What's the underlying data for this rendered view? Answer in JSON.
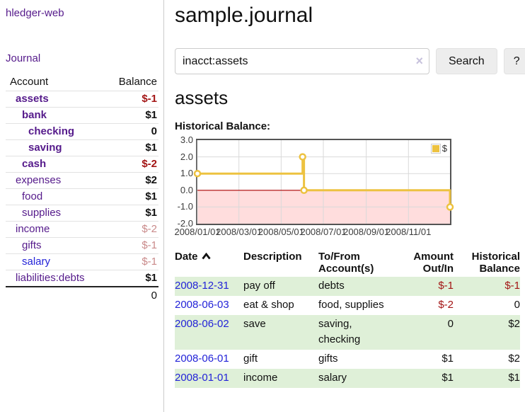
{
  "app": {
    "brand": "hledger-web",
    "nav": {
      "journal": "Journal"
    }
  },
  "sidebar": {
    "col_account": "Account",
    "col_balance": "Balance",
    "accounts": [
      {
        "name": "assets",
        "balance": "$-1",
        "depth": 0,
        "emph": true,
        "balance_style": "negstrong"
      },
      {
        "name": "bank",
        "balance": "$1",
        "depth": 1,
        "emph": true,
        "balance_style": "pos"
      },
      {
        "name": "checking",
        "balance": "0",
        "depth": 2,
        "emph": true,
        "balance_style": "pos"
      },
      {
        "name": "saving",
        "balance": "$1",
        "depth": 2,
        "emph": true,
        "balance_style": "pos"
      },
      {
        "name": "cash",
        "balance": "$-2",
        "depth": 1,
        "emph": true,
        "balance_style": "negstrong"
      },
      {
        "name": "expenses",
        "balance": "$2",
        "depth": 0,
        "emph": false,
        "balance_style": "pos"
      },
      {
        "name": "food",
        "balance": "$1",
        "depth": 1,
        "emph": false,
        "balance_style": "pos"
      },
      {
        "name": "supplies",
        "balance": "$1",
        "depth": 1,
        "emph": false,
        "balance_style": "pos"
      },
      {
        "name": "income",
        "balance": "$-2",
        "depth": 0,
        "emph": false,
        "balance_style": "negmuted"
      },
      {
        "name": "gifts",
        "balance": "$-1",
        "depth": 1,
        "emph": false,
        "balance_style": "negmuted"
      },
      {
        "name": "salary",
        "balance": "$-1",
        "depth": 1,
        "emph": false,
        "balance_style": "negmuted",
        "link_style": "blue"
      },
      {
        "name": "liabilities:debts",
        "balance": "$1",
        "depth": 0,
        "emph": false,
        "balance_style": "pos"
      }
    ],
    "total": "0"
  },
  "header": {
    "title": "sample.journal"
  },
  "search": {
    "value": "inacct:assets",
    "clear_icon": "×",
    "button_label": "Search",
    "help_label": "?"
  },
  "account_page": {
    "title": "assets",
    "chart_label": "Historical Balance:"
  },
  "chart_data": {
    "type": "line",
    "step": true,
    "title": "Historical Balance:",
    "x_range": [
      "2008-01-01",
      "2008-12-31"
    ],
    "ylim": [
      -2,
      3
    ],
    "yticks": [
      "3.0",
      "2.0",
      "1.0",
      "0.0",
      "-1.0",
      "-2.0"
    ],
    "xticks": [
      "2008/01/01",
      "2008/03/01",
      "2008/05/01",
      "2008/07/01",
      "2008/09/01",
      "2008/11/01"
    ],
    "series": [
      {
        "name": "$",
        "color": "#edc240",
        "points": [
          [
            "2008-01-01",
            1.0
          ],
          [
            "2008-06-01",
            2.0
          ],
          [
            "2008-06-03",
            0.0
          ],
          [
            "2008-12-31",
            -1.0
          ]
        ]
      }
    ],
    "legend": {
      "position": "top-right",
      "label": "$"
    },
    "grid": true,
    "below_zero_fill": "#ffdddd",
    "zero_line_color": "#aa0000"
  },
  "register": {
    "headers": {
      "date": "Date",
      "description": "Description",
      "accounts": "To/From Account(s)",
      "amount": "Amount Out/In",
      "balance": "Historical Balance"
    },
    "rows": [
      {
        "date": "2008-12-31",
        "description": "pay off",
        "accounts": "debts",
        "amount": "$-1",
        "amount_style": "neg",
        "balance": "$-1",
        "balance_style": "neg"
      },
      {
        "date": "2008-06-03",
        "description": "eat & shop",
        "accounts": "food, supplies",
        "amount": "$-2",
        "amount_style": "neg",
        "balance": "0",
        "balance_style": "plain"
      },
      {
        "date": "2008-06-02",
        "description": "save",
        "accounts": "saving, checking",
        "amount": "0",
        "amount_style": "plain",
        "balance": "$2",
        "balance_style": "plain"
      },
      {
        "date": "2008-06-01",
        "description": "gift",
        "accounts": "gifts",
        "amount": "$1",
        "amount_style": "plain",
        "balance": "$2",
        "balance_style": "plain"
      },
      {
        "date": "2008-01-01",
        "description": "income",
        "accounts": "salary",
        "amount": "$1",
        "amount_style": "plain",
        "balance": "$1",
        "balance_style": "plain"
      }
    ]
  },
  "colors": {
    "link_purple": "#551a8b",
    "link_blue": "#2323d8",
    "negative_strong": "#a31515",
    "negative_muted": "#c98a8a",
    "row_stripe_green": "#dff0d8",
    "series_gold": "#edc240",
    "below_zero_pink": "#ffdddd",
    "zero_line_red": "#aa0000",
    "button_gray": "#ededed"
  }
}
